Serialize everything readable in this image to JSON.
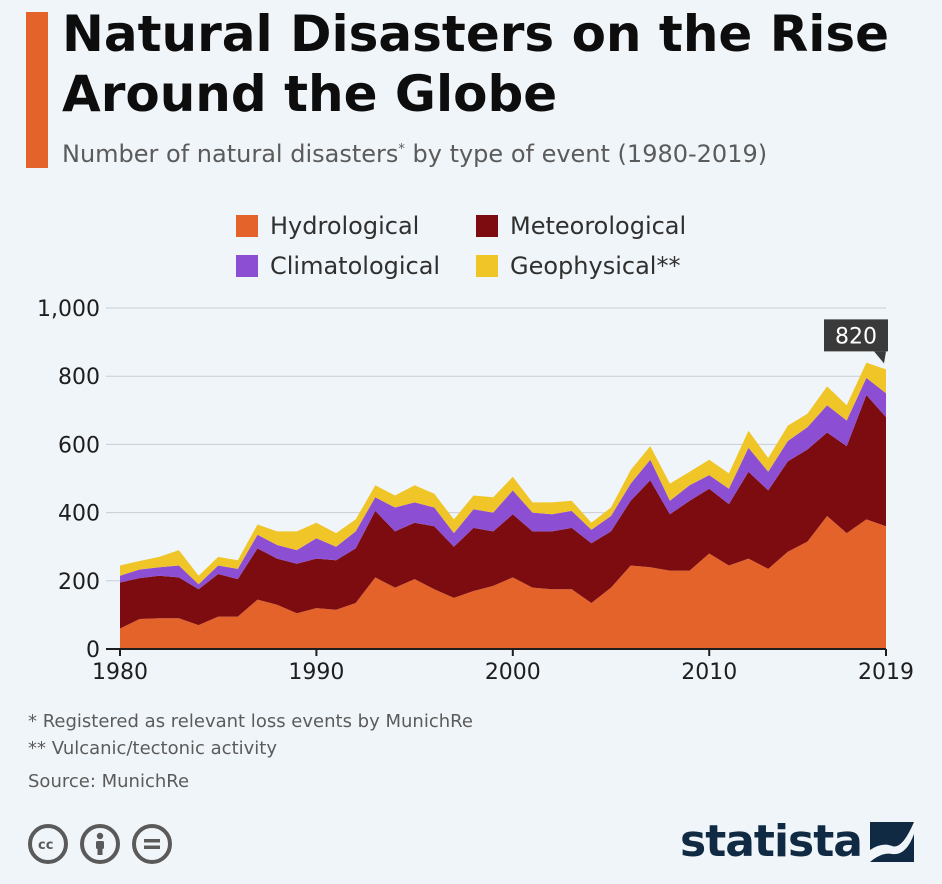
{
  "header": {
    "title": "Natural Disasters on the Rise Around the Globe",
    "subtitle_text": "Number of natural disasters",
    "subtitle_mark": "*",
    "subtitle_rest": " by type of event (1980-2019)"
  },
  "legend": [
    {
      "label": "Hydrological",
      "color": "#e4632b"
    },
    {
      "label": "Meteorological",
      "color": "#7d0c10"
    },
    {
      "label": "Climatological",
      "color": "#8c4fd3"
    },
    {
      "label": "Geophysical**",
      "color": "#f0c528"
    }
  ],
  "callout": {
    "label": "820"
  },
  "footnotes": {
    "note1": "*   Registered as relevant loss events by MunichRe",
    "note2": "** Vulcanic/tectonic activity",
    "source": "Source: MunichRe"
  },
  "license_icons": [
    "cc-icon",
    "attribution-icon",
    "no-derivatives-icon"
  ],
  "brand": {
    "name": "statista"
  },
  "chart_data": {
    "type": "area",
    "stacked": true,
    "title": "Natural Disasters on the Rise Around the Globe",
    "x": [
      1980,
      1981,
      1982,
      1983,
      1984,
      1985,
      1986,
      1987,
      1988,
      1989,
      1990,
      1991,
      1992,
      1993,
      1994,
      1995,
      1996,
      1997,
      1998,
      1999,
      2000,
      2001,
      2002,
      2003,
      2004,
      2005,
      2006,
      2007,
      2008,
      2009,
      2010,
      2011,
      2012,
      2013,
      2014,
      2015,
      2016,
      2017,
      2018,
      2019
    ],
    "series": [
      {
        "name": "Hydrological",
        "color": "#e4632b",
        "values": [
          60,
          88,
          90,
          90,
          70,
          95,
          95,
          145,
          130,
          105,
          120,
          115,
          135,
          210,
          180,
          205,
          175,
          150,
          170,
          185,
          210,
          180,
          175,
          175,
          135,
          180,
          245,
          240,
          230,
          230,
          280,
          245,
          265,
          235,
          285,
          315,
          390,
          340,
          380,
          360
        ]
      },
      {
        "name": "Meteorological",
        "color": "#7d0c10",
        "values": [
          135,
          120,
          125,
          120,
          105,
          125,
          110,
          150,
          135,
          145,
          145,
          145,
          160,
          195,
          165,
          165,
          185,
          150,
          185,
          160,
          185,
          165,
          170,
          180,
          175,
          165,
          190,
          255,
          165,
          205,
          190,
          180,
          255,
          230,
          265,
          270,
          245,
          255,
          365,
          320
        ]
      },
      {
        "name": "Climatological",
        "color": "#8c4fd3",
        "values": [
          20,
          25,
          25,
          35,
          15,
          25,
          30,
          40,
          40,
          40,
          60,
          40,
          50,
          40,
          70,
          60,
          55,
          40,
          55,
          55,
          70,
          55,
          50,
          50,
          40,
          45,
          50,
          60,
          40,
          45,
          40,
          45,
          70,
          55,
          60,
          65,
          80,
          75,
          50,
          70
        ]
      },
      {
        "name": "Geophysical**",
        "color": "#f0c528",
        "values": [
          30,
          25,
          30,
          45,
          25,
          25,
          25,
          30,
          40,
          55,
          45,
          40,
          35,
          35,
          35,
          50,
          40,
          40,
          40,
          45,
          40,
          30,
          35,
          30,
          20,
          25,
          40,
          40,
          50,
          40,
          45,
          45,
          50,
          40,
          45,
          40,
          55,
          45,
          45,
          70
        ]
      }
    ],
    "xlim": [
      1980,
      2019
    ],
    "ylim": [
      0,
      1000
    ],
    "x_ticks": [
      "1980",
      "1990",
      "2000",
      "2010",
      "2019"
    ],
    "y_ticks": [
      "0",
      "200",
      "400",
      "600",
      "800",
      "1,000"
    ],
    "grid": true,
    "legend_position": "top"
  }
}
